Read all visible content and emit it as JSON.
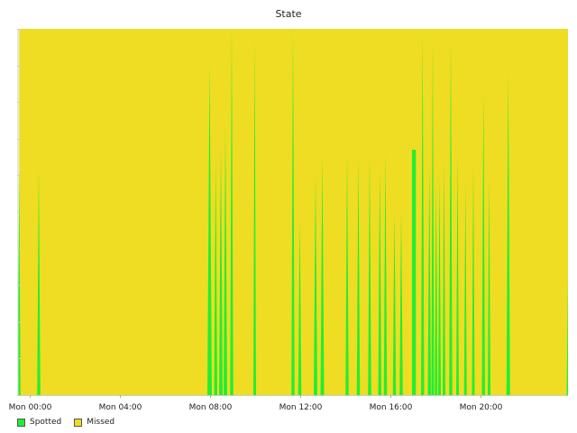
{
  "chart_data": {
    "type": "area",
    "title": "State",
    "xlabel": "",
    "ylabel": "",
    "x_unit": "hours",
    "xlim": [
      -0.5,
      23.9
    ],
    "ylim": [
      0,
      1
    ],
    "x_ticks": [
      {
        "value": 0,
        "label": "Mon 00:00"
      },
      {
        "value": 4,
        "label": "Mon 04:00"
      },
      {
        "value": 8,
        "label": "Mon 08:00"
      },
      {
        "value": 12,
        "label": "Mon 12:00"
      },
      {
        "value": 16,
        "label": "Mon 16:00"
      },
      {
        "value": 20,
        "label": "Mon 20:00"
      }
    ],
    "y_ticks": [
      0,
      0.1,
      0.2,
      0.3,
      0.4,
      0.5,
      0.6,
      0.7,
      0.8,
      0.9,
      1.0
    ],
    "y_tick_labels_visible": false,
    "grid": false,
    "legend_position": "bottom-left",
    "stacked": true,
    "series": [
      {
        "name": "Spotted",
        "color": "#22ee33",
        "spikes": [
          {
            "x": -0.45,
            "peak": 0.62,
            "halfwidth": 0.06
          },
          {
            "x": 0.42,
            "peak": 0.62,
            "halfwidth": 0.07
          },
          {
            "x": 8.0,
            "peak": 0.9,
            "halfwidth": 0.1
          },
          {
            "x": 8.27,
            "peak": 0.64,
            "halfwidth": 0.07
          },
          {
            "x": 8.5,
            "peak": 0.67,
            "halfwidth": 0.08
          },
          {
            "x": 8.7,
            "peak": 0.73,
            "halfwidth": 0.08
          },
          {
            "x": 8.98,
            "peak": 1.0,
            "halfwidth": 0.07
          },
          {
            "x": 10.0,
            "peak": 0.97,
            "halfwidth": 0.06
          },
          {
            "x": 11.7,
            "peak": 1.0,
            "halfwidth": 0.07
          },
          {
            "x": 12.0,
            "peak": 0.48,
            "halfwidth": 0.07
          },
          {
            "x": 12.7,
            "peak": 0.6,
            "halfwidth": 0.08
          },
          {
            "x": 13.0,
            "peak": 0.65,
            "halfwidth": 0.08
          },
          {
            "x": 14.1,
            "peak": 0.66,
            "halfwidth": 0.07
          },
          {
            "x": 14.6,
            "peak": 0.65,
            "halfwidth": 0.07
          },
          {
            "x": 15.1,
            "peak": 0.65,
            "halfwidth": 0.07
          },
          {
            "x": 15.55,
            "peak": 0.62,
            "halfwidth": 0.07
          },
          {
            "x": 15.8,
            "peak": 0.66,
            "halfwidth": 0.07
          },
          {
            "x": 16.2,
            "peak": 0.5,
            "halfwidth": 0.07
          },
          {
            "x": 16.5,
            "peak": 0.5,
            "halfwidth": 0.07
          },
          {
            "x": 17.45,
            "peak": 0.99,
            "halfwidth": 0.07
          },
          {
            "x": 17.75,
            "peak": 0.62,
            "halfwidth": 0.07
          },
          {
            "x": 17.9,
            "peak": 0.97,
            "halfwidth": 0.06
          },
          {
            "x": 18.05,
            "peak": 0.58,
            "halfwidth": 0.06
          },
          {
            "x": 18.2,
            "peak": 0.6,
            "halfwidth": 0.06
          },
          {
            "x": 18.4,
            "peak": 0.64,
            "halfwidth": 0.06
          },
          {
            "x": 18.7,
            "peak": 0.97,
            "halfwidth": 0.07
          },
          {
            "x": 19.0,
            "peak": 0.66,
            "halfwidth": 0.06
          },
          {
            "x": 19.35,
            "peak": 0.58,
            "halfwidth": 0.06
          },
          {
            "x": 19.7,
            "peak": 0.63,
            "halfwidth": 0.06
          },
          {
            "x": 20.15,
            "peak": 0.83,
            "halfwidth": 0.07
          },
          {
            "x": 20.4,
            "peak": 0.59,
            "halfwidth": 0.06
          },
          {
            "x": 21.25,
            "peak": 0.88,
            "halfwidth": 0.08
          },
          {
            "x": 23.9,
            "peak": 0.33,
            "halfwidth": 0.06
          }
        ],
        "blocks": [
          {
            "x0": 16.98,
            "x1": 17.15,
            "value": 0.67
          }
        ]
      },
      {
        "name": "Missed",
        "color": "#eedd22",
        "note_fill": "fills remainder up to 1.0"
      }
    ]
  }
}
